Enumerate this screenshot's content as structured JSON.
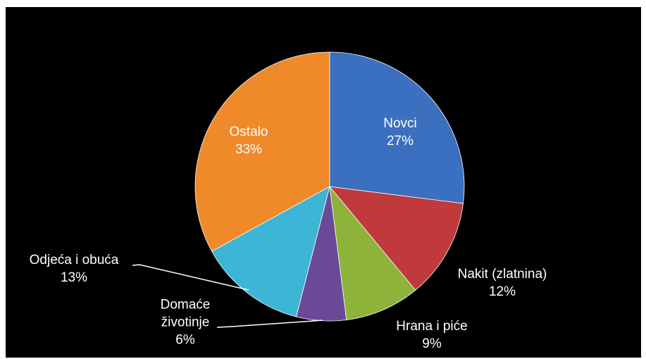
{
  "chart_data": {
    "type": "pie",
    "categories": [
      "Novci",
      "Nakit (zlatnina)",
      "Hrana i piće",
      "Domaće životinje",
      "Odjeća i obuća",
      "Ostalo"
    ],
    "values": [
      27,
      12,
      9,
      6,
      13,
      33
    ],
    "value_labels": [
      "27%",
      "12%",
      "9%",
      "6%",
      "13%",
      "33%"
    ],
    "colors": [
      "#3b6fbf",
      "#c0393b",
      "#8db33b",
      "#6a4a98",
      "#3cb5d6",
      "#f0892a"
    ]
  }
}
